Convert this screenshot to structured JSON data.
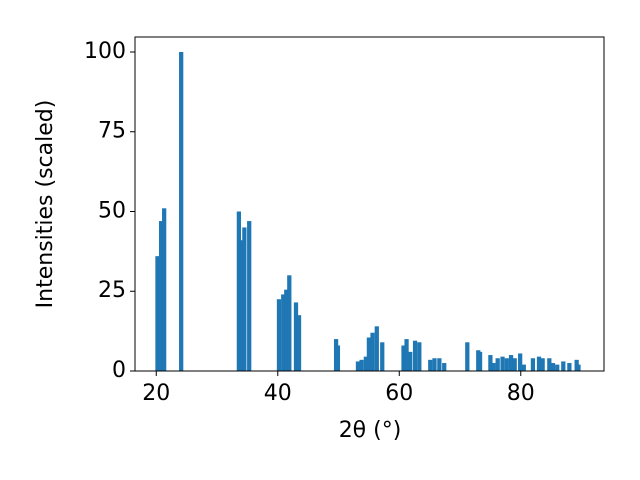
{
  "chart_data": {
    "type": "bar",
    "color": "#1f77b4",
    "x": [
      20.2,
      20.8,
      21.3,
      24.1,
      33.6,
      34.1,
      34.5,
      35.3,
      40.2,
      40.9,
      41.4,
      41.9,
      43.0,
      43.5,
      49.6,
      49.9,
      53.2,
      53.8,
      54.5,
      55.0,
      55.6,
      56.3,
      57.2,
      60.7,
      61.2,
      61.8,
      62.6,
      63.3,
      65.1,
      65.8,
      66.6,
      67.4,
      71.2,
      73.0,
      73.3,
      75.0,
      75.5,
      76.2,
      77.0,
      77.7,
      78.4,
      79.0,
      79.9,
      80.5,
      82.0,
      83.0,
      83.6,
      84.7,
      85.3,
      86.0,
      87.0,
      88.0,
      89.2,
      89.5
    ],
    "values": [
      36,
      47,
      51,
      100,
      50,
      41,
      45,
      47,
      22.5,
      24,
      25.5,
      30,
      21.5,
      17.5,
      10,
      8,
      3,
      3.5,
      4.5,
      10.5,
      12,
      14,
      9,
      8,
      10,
      6,
      9.5,
      9,
      3.5,
      4,
      4,
      2.5,
      9,
      6.5,
      6,
      5,
      2.5,
      4,
      4.5,
      4,
      5,
      4,
      5.5,
      2,
      4,
      4.5,
      4,
      4,
      2.5,
      2,
      3,
      2.5,
      3.5,
      2
    ],
    "xlabel": "2θ (°)",
    "ylabel": "Intensities (scaled)",
    "xlim": [
      16.5,
      93.7
    ],
    "ylim": [
      0,
      104.7
    ],
    "xticks": [
      20,
      40,
      60,
      80
    ],
    "yticks": [
      0,
      25,
      50,
      75,
      100
    ]
  }
}
